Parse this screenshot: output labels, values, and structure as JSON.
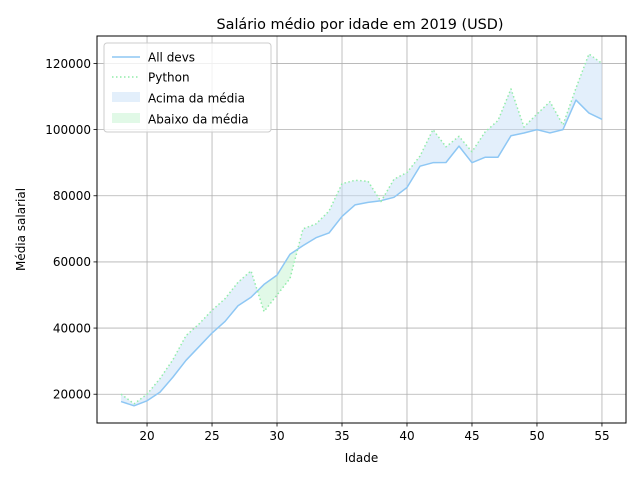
{
  "chart_data": {
    "type": "line",
    "title": "Salário médio por idade em 2019 (USD)",
    "xlabel": "Idade",
    "ylabel": "Média salarial",
    "xlim": [
      16.15,
      56.85
    ],
    "ylim": [
      11300,
      128300
    ],
    "x_ticks": [
      20,
      25,
      30,
      35,
      40,
      45,
      50,
      55
    ],
    "y_ticks": [
      20000,
      40000,
      60000,
      80000,
      100000,
      120000
    ],
    "grid": true,
    "legend_position": "top-left",
    "x": [
      18,
      19,
      20,
      21,
      22,
      23,
      24,
      25,
      26,
      27,
      28,
      29,
      30,
      31,
      32,
      33,
      34,
      35,
      36,
      37,
      38,
      39,
      40,
      41,
      42,
      43,
      44,
      45,
      46,
      47,
      48,
      49,
      50,
      51,
      52,
      53,
      54,
      55
    ],
    "series": [
      {
        "name": "All devs",
        "style": "solid",
        "color": "#8ec7f4",
        "values": [
          17784,
          16500,
          18012,
          20628,
          25206,
          30252,
          34368,
          38496,
          42000,
          46752,
          49320,
          53200,
          56000,
          62316,
          64928,
          67317,
          68748,
          73752,
          77232,
          78000,
          78508,
          79536,
          82488,
          88935,
          90000,
          90056,
          95000,
          90000,
          91633,
          91660,
          98150,
          98964,
          100000,
          98988,
          100000,
          108923,
          105000,
          103117
        ]
      },
      {
        "name": "Python",
        "style": "dotted",
        "color": "#92ecaa",
        "values": [
          20046,
          17100,
          20000,
          24744,
          30500,
          37732,
          41247,
          45372,
          48876,
          53850,
          57287,
          45000,
          50000,
          55000,
          70000,
          71496,
          75370,
          83640,
          84666,
          84392,
          78254,
          85000,
          87038,
          91991,
          100000,
          94796,
          97962,
          93302,
          99240,
          102736,
          112285,
          100771,
          104708,
          108423,
          101407,
          112542,
          122870,
          120000
        ]
      }
    ],
    "fills": [
      {
        "name": "Acima da média",
        "color": "#c8e0f8"
      },
      {
        "name": "Abaixo da média",
        "color": "#c4f4cf"
      }
    ]
  }
}
